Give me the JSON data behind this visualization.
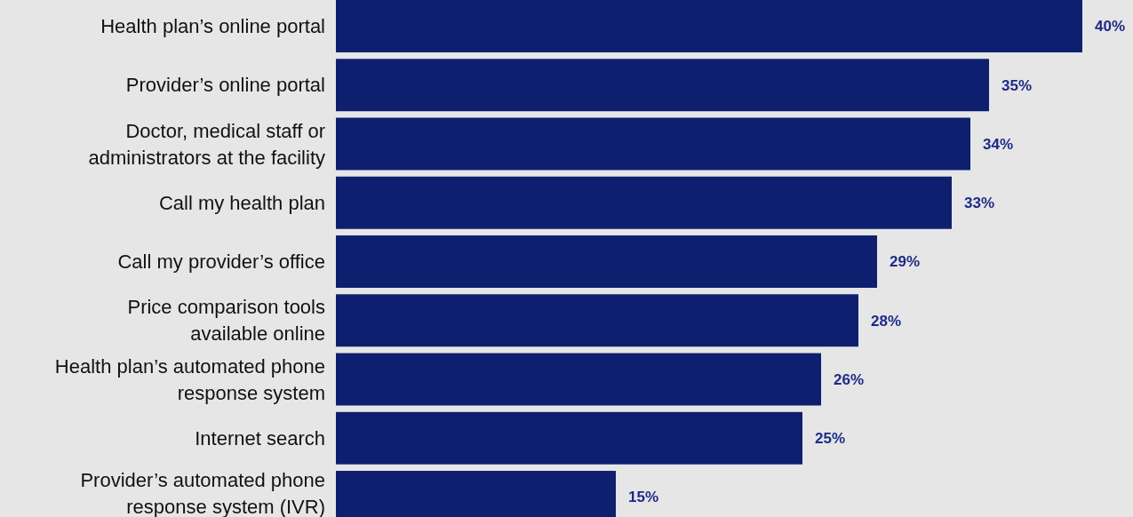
{
  "chart_data": {
    "type": "bar",
    "orientation": "horizontal",
    "categories": [
      "Health plan’s online portal",
      "Provider’s online portal",
      "Doctor, medical staff or administrators at the facility",
      "Call my health plan",
      "Call my provider’s office",
      "Price comparison tools available online",
      "Health plan’s automated phone response system",
      "Internet search",
      "Provider’s automated phone response system (IVR)"
    ],
    "values": [
      40,
      35,
      34,
      33,
      29,
      28,
      26,
      25,
      15
    ],
    "value_labels": [
      "40%",
      "35%",
      "34%",
      "33%",
      "29%",
      "28%",
      "26%",
      "25%",
      "15%"
    ],
    "color": "#0e1f6f",
    "xlim": [
      0,
      40
    ],
    "tick_labels": "y"
  }
}
